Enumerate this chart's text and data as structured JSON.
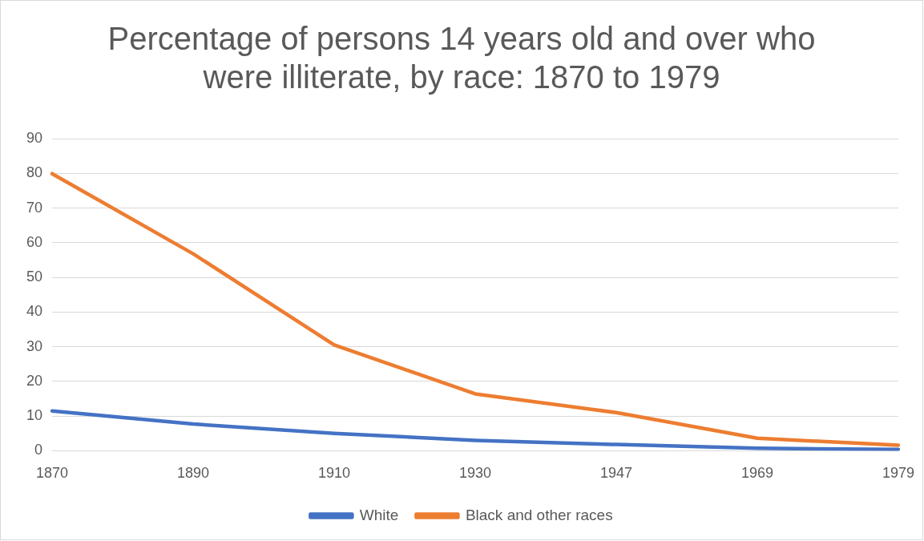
{
  "chart_data": {
    "type": "line",
    "title": "Percentage of persons 14 years old and over who were illiterate, by race: 1870 to 1979",
    "categories": [
      "1870",
      "1890",
      "1910",
      "1930",
      "1947",
      "1969",
      "1979"
    ],
    "series": [
      {
        "name": "White",
        "color": "#4472c4",
        "values": [
          11.5,
          7.7,
          5.0,
          3.0,
          1.8,
          0.7,
          0.4
        ]
      },
      {
        "name": "Black and other races",
        "color": "#ed7d31",
        "values": [
          79.9,
          56.8,
          30.5,
          16.4,
          11.0,
          3.6,
          1.6
        ]
      }
    ],
    "ylim": [
      0,
      90
    ],
    "yticks": [
      0,
      10,
      20,
      30,
      40,
      50,
      60,
      70,
      80,
      90
    ],
    "grid": "y",
    "legend": "bottom",
    "marker": "none",
    "line_style": "solid"
  }
}
